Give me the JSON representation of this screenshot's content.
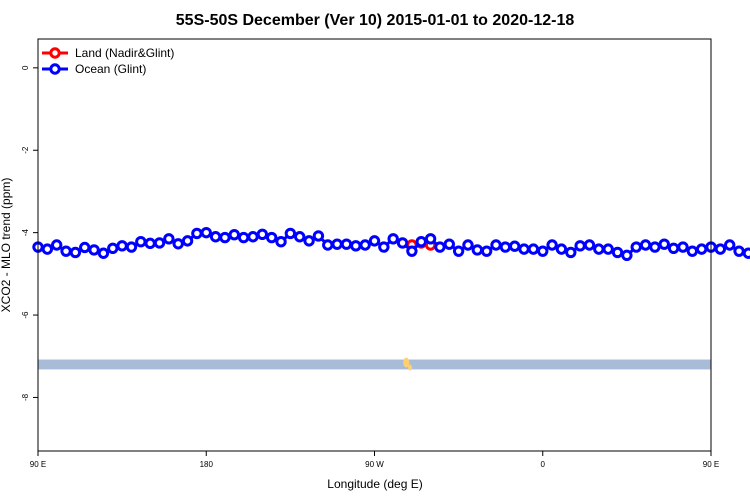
{
  "chart_data": {
    "type": "line",
    "title": "55S-50S December (Ver 10)   2015-01-01 to 2020-12-18",
    "xlabel": "Longitude (deg E)",
    "ylabel": "XCO2 - MLO trend (ppm)",
    "xlim": [
      90,
      450
    ],
    "ylim": [
      -9.3,
      0.7
    ],
    "x_ticks": [
      {
        "value": 90,
        "label": "90 E"
      },
      {
        "value": 180,
        "label": "180"
      },
      {
        "value": 270,
        "label": "90 W"
      },
      {
        "value": 360,
        "label": "0"
      },
      {
        "value": 450,
        "label": "90 E"
      },
      {
        "value": 540,
        "label": "180"
      }
    ],
    "y_ticks": [
      {
        "value": 0,
        "label": "0"
      },
      {
        "value": -2,
        "label": "-2"
      },
      {
        "value": -4,
        "label": "-4"
      },
      {
        "value": -6,
        "label": "-6"
      },
      {
        "value": -8,
        "label": "-8"
      }
    ],
    "grid": false,
    "legend_position": "top-left",
    "series": [
      {
        "name": "Land (Nadir&Glint)",
        "color": "#ff0000",
        "points": [
          [
            290,
            -4.3
          ],
          [
            295,
            -4.25
          ],
          [
            300,
            -4.3
          ]
        ]
      },
      {
        "name": "Ocean (Glint)",
        "color": "#0000ff",
        "x_start": 90,
        "x_step": 5,
        "values": [
          -4.35,
          -4.4,
          -4.3,
          -4.45,
          -4.48,
          -4.36,
          -4.42,
          -4.5,
          -4.38,
          -4.32,
          -4.35,
          -4.22,
          -4.26,
          -4.25,
          -4.15,
          -4.27,
          -4.2,
          -4.02,
          -4.0,
          -4.1,
          -4.12,
          -4.05,
          -4.12,
          -4.1,
          -4.04,
          -4.12,
          -4.22,
          -4.02,
          -4.1,
          -4.2,
          -4.08,
          -4.3,
          -4.28,
          -4.28,
          -4.32,
          -4.3,
          -4.2,
          -4.35,
          -4.15,
          -4.25,
          -4.45,
          -4.22,
          -4.15,
          -4.35,
          -4.28,
          -4.45,
          -4.3,
          -4.42,
          -4.45,
          -4.3,
          -4.35,
          -4.33,
          -4.4,
          -4.4,
          -4.45,
          -4.3,
          -4.4,
          -4.48,
          -4.32,
          -4.3,
          -4.4,
          -4.4,
          -4.48,
          -4.55,
          -4.35,
          -4.3,
          -4.35,
          -4.28,
          -4.38,
          -4.35,
          -4.45,
          -4.4,
          -4.35,
          -4.4,
          -4.3,
          -4.45,
          -4.5,
          -4.35,
          -4.4,
          -4.48,
          -4.35,
          -4.32,
          -4.35,
          -4.2,
          -4.26,
          -4.22,
          -4.12,
          -4.25,
          -4.15,
          -4.02
        ]
      }
    ],
    "map_band": {
      "y_min": -7.32,
      "y_max": -7.08,
      "color": "#a8bcd8",
      "land_color": "#ffd070"
    }
  }
}
